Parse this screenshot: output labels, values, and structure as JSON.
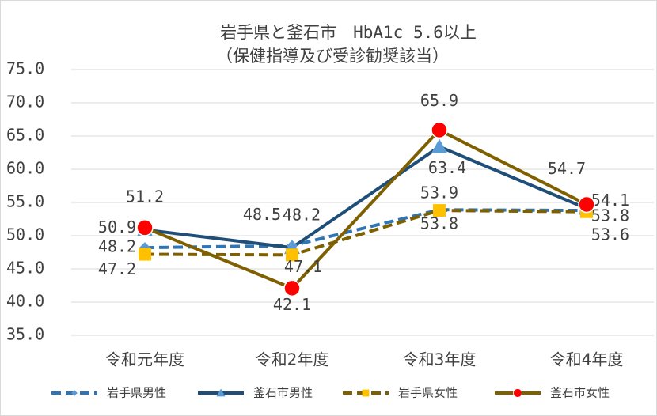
{
  "chart_data": {
    "type": "line",
    "title": "岩手県と釜石市　HbA1c 5.6以上",
    "subtitle": "（保健指導及び受診勧奨該当）",
    "categories": [
      "令和元年度",
      "令和2年度",
      "令和3年度",
      "令和4年度"
    ],
    "ylim": [
      35,
      75
    ],
    "yticks": [
      {
        "value": 35,
        "label": "35.0"
      },
      {
        "value": 40,
        "label": "40.0"
      },
      {
        "value": 45,
        "label": "45.0"
      },
      {
        "value": 50,
        "label": "50.0"
      },
      {
        "value": 55,
        "label": "55.0"
      },
      {
        "value": 60,
        "label": "60.0"
      },
      {
        "value": 65,
        "label": "65.0"
      },
      {
        "value": 70,
        "label": "70.0"
      },
      {
        "value": 75,
        "label": "75.0"
      }
    ],
    "grid": true,
    "legend": "bottom",
    "series": [
      {
        "name": "岩手県男性",
        "color": "#2e75b6",
        "dash": true,
        "marker": "diamond",
        "values": [
          48.2,
          48.5,
          53.9,
          53.8
        ]
      },
      {
        "name": "釜石市男性",
        "color": "#1f4e79",
        "dash": false,
        "marker": "triangle",
        "values": [
          50.9,
          48.2,
          63.4,
          54.1
        ]
      },
      {
        "name": "岩手県女性",
        "color": "#7f6000",
        "dash": true,
        "marker": "square",
        "values": [
          47.2,
          47.1,
          53.8,
          53.6
        ]
      },
      {
        "name": "釜石市女性",
        "color": "#7f6000",
        "dash": false,
        "marker": "circle",
        "values": [
          51.2,
          42.1,
          65.9,
          54.7
        ]
      }
    ]
  }
}
